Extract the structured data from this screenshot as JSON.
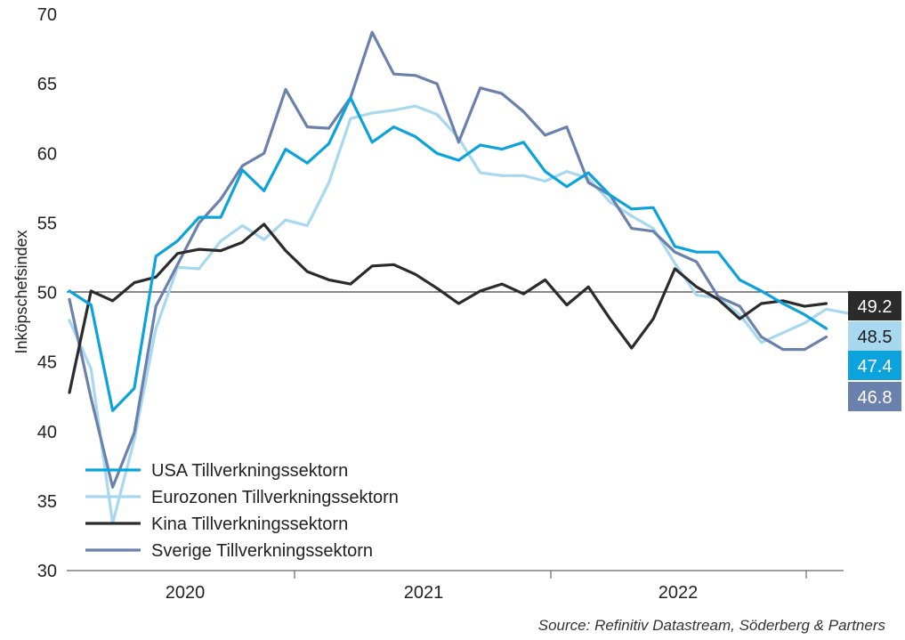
{
  "chart_data": {
    "type": "line",
    "title": "",
    "xlabel": "",
    "ylabel": "Inköpschefsindex",
    "ylim": [
      30,
      70
    ],
    "yticks": [
      30,
      35,
      40,
      45,
      50,
      55,
      60,
      65,
      70
    ],
    "x_year_labels": [
      "2020",
      "2021",
      "2022"
    ],
    "reference_line": 50,
    "grid": false,
    "legend_position": "bottom-left",
    "series": [
      {
        "name": "USA Tillverkningssektorn",
        "color": "#0ca2dc",
        "end_label": "47.4",
        "values": [
          50.1,
          49.1,
          41.5,
          43.1,
          52.6,
          53.7,
          55.4,
          55.4,
          58.8,
          57.3,
          60.3,
          59.3,
          60.7,
          64.0,
          60.8,
          61.9,
          61.2,
          60.0,
          59.5,
          60.6,
          60.3,
          60.8,
          58.7,
          57.6,
          58.6,
          57.0,
          56.0,
          56.1,
          53.3,
          52.9,
          52.9,
          50.9,
          50.1,
          49.2,
          48.4,
          47.4
        ]
      },
      {
        "name": "Eurozonen Tillverkningssektorn",
        "color": "#a8d8f0",
        "end_label": "48.5",
        "values": [
          48.0,
          44.5,
          33.4,
          39.4,
          47.4,
          51.8,
          51.7,
          53.7,
          54.8,
          53.8,
          55.2,
          54.8,
          57.9,
          62.5,
          62.9,
          63.1,
          63.4,
          62.8,
          61.1,
          58.6,
          58.4,
          58.4,
          58.0,
          58.7,
          58.2,
          56.5,
          55.5,
          54.6,
          52.1,
          49.8,
          49.6,
          48.4,
          46.4,
          47.1,
          47.8,
          48.8,
          48.5
        ]
      },
      {
        "name": "Kina Tillverkningssektorn",
        "color": "#2b2b2b",
        "end_label": "49.2",
        "values": [
          42.8,
          50.1,
          49.4,
          50.7,
          51.1,
          52.8,
          53.1,
          53.0,
          53.6,
          54.9,
          53.0,
          51.5,
          50.9,
          50.6,
          51.9,
          52.0,
          51.3,
          50.3,
          49.2,
          50.1,
          50.6,
          49.9,
          50.9,
          49.1,
          50.4,
          48.1,
          46.0,
          48.1,
          51.7,
          50.4,
          49.5,
          48.1,
          49.2,
          49.4,
          49.0,
          49.2
        ]
      },
      {
        "name": "Sverige Tillverkningssektorn",
        "color": "#6a81ad",
        "end_label": "46.8",
        "values": [
          49.5,
          42.4,
          36.0,
          39.9,
          49.0,
          52.0,
          55.0,
          56.7,
          59.1,
          60.0,
          64.6,
          61.9,
          61.8,
          64.0,
          68.7,
          65.7,
          65.6,
          65.0,
          60.8,
          64.7,
          64.3,
          63.0,
          61.3,
          61.9,
          57.9,
          57.0,
          54.6,
          54.4,
          52.9,
          52.2,
          49.7,
          49.0,
          46.8,
          45.9,
          45.9,
          46.8
        ]
      }
    ]
  },
  "source_note": "Source: Refinitiv Datastream, Söderberg & Partners"
}
